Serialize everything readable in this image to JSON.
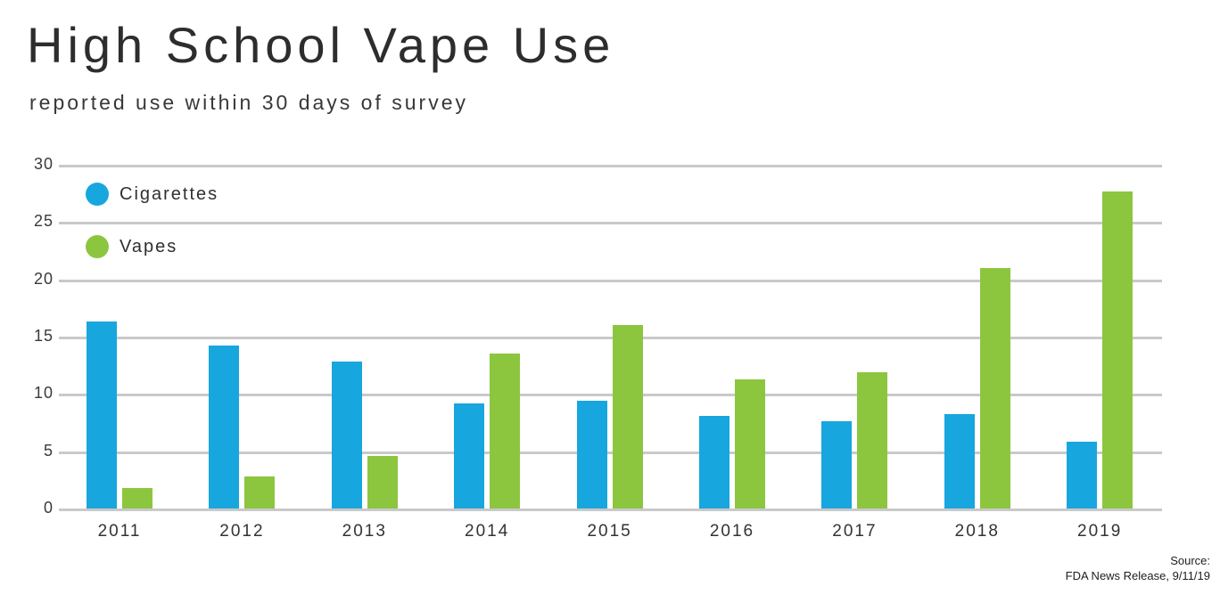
{
  "page": {
    "title": "High School Vape Use",
    "subtitle": "reported use within 30 days of survey",
    "source_label": "Source:",
    "source_detail": "FDA News Release, 9/11/19"
  },
  "colors": {
    "cigarettes": "#18a6de",
    "vapes": "#8cc63f",
    "gridline": "#c9c9c9",
    "title_text": "#2d2d2d",
    "axis_text": "#3a3a3a"
  },
  "chart_data": {
    "type": "bar",
    "title": "High School Vape Use",
    "subtitle": "reported use within 30 days of survey",
    "categories": [
      "2011",
      "2012",
      "2013",
      "2014",
      "2015",
      "2016",
      "2017",
      "2018",
      "2019"
    ],
    "series": [
      {
        "name": "Cigarettes",
        "color": "#18a6de",
        "values": [
          16.3,
          14.2,
          12.8,
          9.2,
          9.4,
          8.1,
          7.6,
          8.2,
          5.8
        ]
      },
      {
        "name": "Vapes",
        "color": "#8cc63f",
        "values": [
          1.8,
          2.8,
          4.6,
          13.5,
          16.0,
          11.3,
          11.9,
          21.0,
          27.7
        ]
      }
    ],
    "xlabel": "",
    "ylabel": "",
    "ylim": [
      0,
      30
    ],
    "yticks": [
      0,
      5,
      10,
      15,
      20,
      25,
      30
    ],
    "grid": "horizontal",
    "legend_position": "top-left-inside",
    "source": "Source: FDA News Release, 9/11/19"
  }
}
